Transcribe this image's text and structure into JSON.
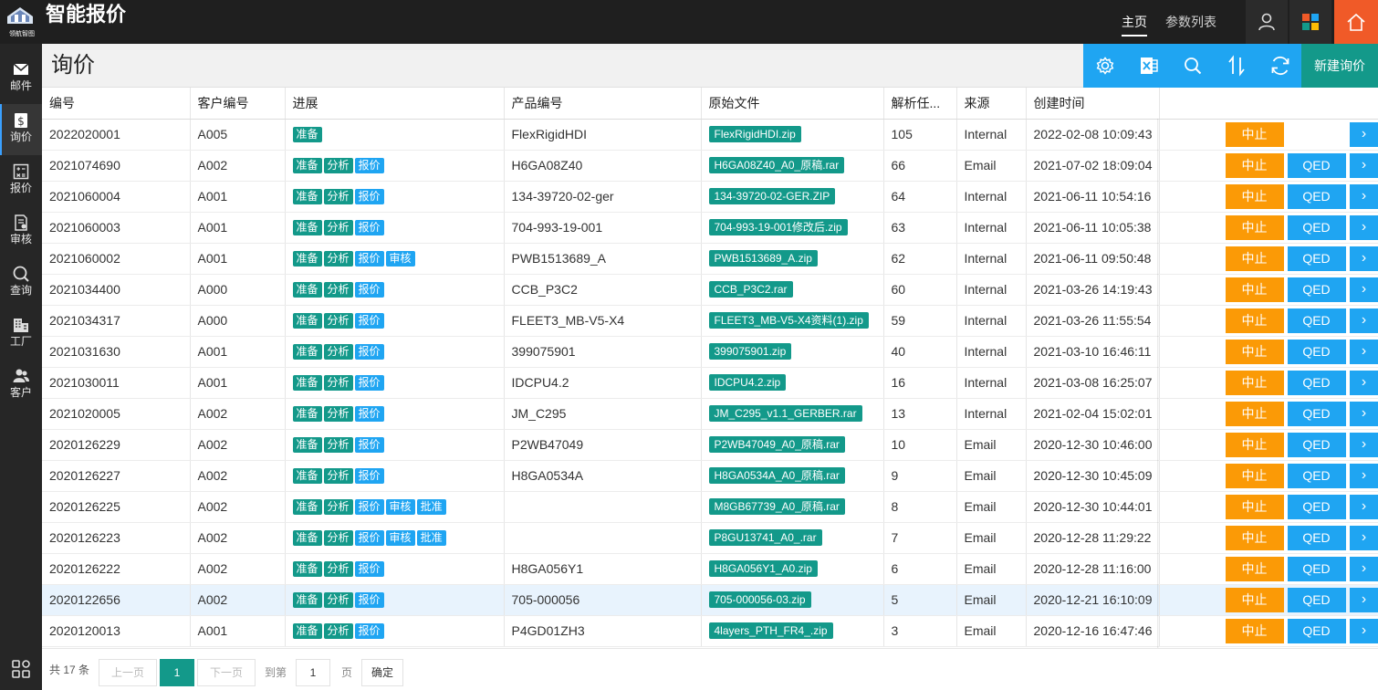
{
  "app": {
    "title": "智能报价",
    "logo_text": "领航智图"
  },
  "topnav": [
    {
      "label": "主页",
      "active": true
    },
    {
      "label": "参数列表",
      "active": false
    }
  ],
  "sidebar": [
    {
      "label": "邮件",
      "icon": "mail-icon"
    },
    {
      "label": "询价",
      "icon": "dollar-icon",
      "active": true
    },
    {
      "label": "报价",
      "icon": "calculator-icon"
    },
    {
      "label": "审核",
      "icon": "review-icon"
    },
    {
      "label": "查询",
      "icon": "search-icon"
    },
    {
      "label": "工厂",
      "icon": "factory-icon"
    },
    {
      "label": "客户",
      "icon": "customers-icon"
    }
  ],
  "page": {
    "title": "询价",
    "new_label": "新建询价"
  },
  "table": {
    "columns": [
      "编号",
      "客户编号",
      "进展",
      "产品编号",
      "原始文件",
      "解析任...",
      "来源",
      "创建时间"
    ],
    "rows": [
      {
        "id": "2022020001",
        "customer": "A005",
        "progress": [
          "准备"
        ],
        "product": "FlexRigidHDI",
        "file": "FlexRigidHDI.zip",
        "task": "105",
        "source": "Internal",
        "created": "2022-02-08 10:09:43",
        "qed": false
      },
      {
        "id": "2021074690",
        "customer": "A002",
        "progress": [
          "准备",
          "分析",
          "报价"
        ],
        "product": "H6GA08Z40",
        "file": "H6GA08Z40_A0_原稿.rar",
        "task": "66",
        "source": "Email",
        "created": "2021-07-02 18:09:04",
        "qed": true
      },
      {
        "id": "2021060004",
        "customer": "A001",
        "progress": [
          "准备",
          "分析",
          "报价"
        ],
        "product": "134-39720-02-ger",
        "file": "134-39720-02-GER.ZIP",
        "task": "64",
        "source": "Internal",
        "created": "2021-06-11 10:54:16",
        "qed": true
      },
      {
        "id": "2021060003",
        "customer": "A001",
        "progress": [
          "准备",
          "分析",
          "报价"
        ],
        "product": "704-993-19-001",
        "file": "704-993-19-001修改后.zip",
        "task": "63",
        "source": "Internal",
        "created": "2021-06-11 10:05:38",
        "qed": true
      },
      {
        "id": "2021060002",
        "customer": "A001",
        "progress": [
          "准备",
          "分析",
          "报价",
          "审核"
        ],
        "product": "PWB1513689_A",
        "file": "PWB1513689_A.zip",
        "task": "62",
        "source": "Internal",
        "created": "2021-06-11 09:50:48",
        "qed": true
      },
      {
        "id": "2021034400",
        "customer": "A000",
        "progress": [
          "准备",
          "分析",
          "报价"
        ],
        "product": "CCB_P3C2",
        "file": "CCB_P3C2.rar",
        "task": "60",
        "source": "Internal",
        "created": "2021-03-26 14:19:43",
        "qed": true
      },
      {
        "id": "2021034317",
        "customer": "A000",
        "progress": [
          "准备",
          "分析",
          "报价"
        ],
        "product": "FLEET3_MB-V5-X4",
        "file": "FLEET3_MB-V5-X4资料(1).zip",
        "task": "59",
        "source": "Internal",
        "created": "2021-03-26 11:55:54",
        "qed": true
      },
      {
        "id": "2021031630",
        "customer": "A001",
        "progress": [
          "准备",
          "分析",
          "报价"
        ],
        "product": "399075901",
        "file": "399075901.zip",
        "task": "40",
        "source": "Internal",
        "created": "2021-03-10 16:46:11",
        "qed": true
      },
      {
        "id": "2021030011",
        "customer": "A001",
        "progress": [
          "准备",
          "分析",
          "报价"
        ],
        "product": "IDCPU4.2",
        "file": "IDCPU4.2.zip",
        "task": "16",
        "source": "Internal",
        "created": "2021-03-08 16:25:07",
        "qed": true
      },
      {
        "id": "2021020005",
        "customer": "A002",
        "progress": [
          "准备",
          "分析",
          "报价"
        ],
        "product": "JM_C295",
        "file": "JM_C295_v1.1_GERBER.rar",
        "task": "13",
        "source": "Internal",
        "created": "2021-02-04 15:02:01",
        "qed": true
      },
      {
        "id": "2020126229",
        "customer": "A002",
        "progress": [
          "准备",
          "分析",
          "报价"
        ],
        "product": "P2WB47049",
        "file": "P2WB47049_A0_原稿.rar",
        "task": "10",
        "source": "Email",
        "created": "2020-12-30 10:46:00",
        "qed": true
      },
      {
        "id": "2020126227",
        "customer": "A002",
        "progress": [
          "准备",
          "分析",
          "报价"
        ],
        "product": "H8GA0534A",
        "file": "H8GA0534A_A0_原稿.rar",
        "task": "9",
        "source": "Email",
        "created": "2020-12-30 10:45:09",
        "qed": true
      },
      {
        "id": "2020126225",
        "customer": "A002",
        "progress": [
          "准备",
          "分析",
          "报价",
          "审核",
          "批准"
        ],
        "product": "",
        "file": "M8GB67739_A0_原稿.rar",
        "task": "8",
        "source": "Email",
        "created": "2020-12-30 10:44:01",
        "qed": true
      },
      {
        "id": "2020126223",
        "customer": "A002",
        "progress": [
          "准备",
          "分析",
          "报价",
          "审核",
          "批准"
        ],
        "product": "",
        "file": "P8GU13741_A0_.rar",
        "task": "7",
        "source": "Email",
        "created": "2020-12-28 11:29:22",
        "qed": true
      },
      {
        "id": "2020126222",
        "customer": "A002",
        "progress": [
          "准备",
          "分析",
          "报价"
        ],
        "product": "H8GA056Y1",
        "file": "H8GA056Y1_A0.zip",
        "task": "6",
        "source": "Email",
        "created": "2020-12-28 11:16:00",
        "qed": true
      },
      {
        "id": "2020122656",
        "customer": "A002",
        "progress": [
          "准备",
          "分析",
          "报价"
        ],
        "product": "705-000056",
        "file": "705-000056-03.zip",
        "task": "5",
        "source": "Email",
        "created": "2020-12-21 16:10:09",
        "qed": true,
        "highlighted": true
      },
      {
        "id": "2020120013",
        "customer": "A001",
        "progress": [
          "准备",
          "分析",
          "报价"
        ],
        "product": "P4GD01ZH3",
        "file": "4layers_PTH_FR4_.zip",
        "task": "3",
        "source": "Email",
        "created": "2020-12-16 16:47:46",
        "qed": true
      }
    ],
    "stop_label": "中止",
    "qed_label": "QED",
    "go_label": "›"
  },
  "colors": {
    "green": "#13998a",
    "blue": "#1fa5f2",
    "orange": "#fb9a06",
    "home": "#f05a28"
  },
  "pager": {
    "total": "共 17 条",
    "prev": "上一页",
    "current": "1",
    "next": "下一页",
    "goto": "到第",
    "page_value": "1",
    "page_unit": "页",
    "confirm": "确定"
  }
}
